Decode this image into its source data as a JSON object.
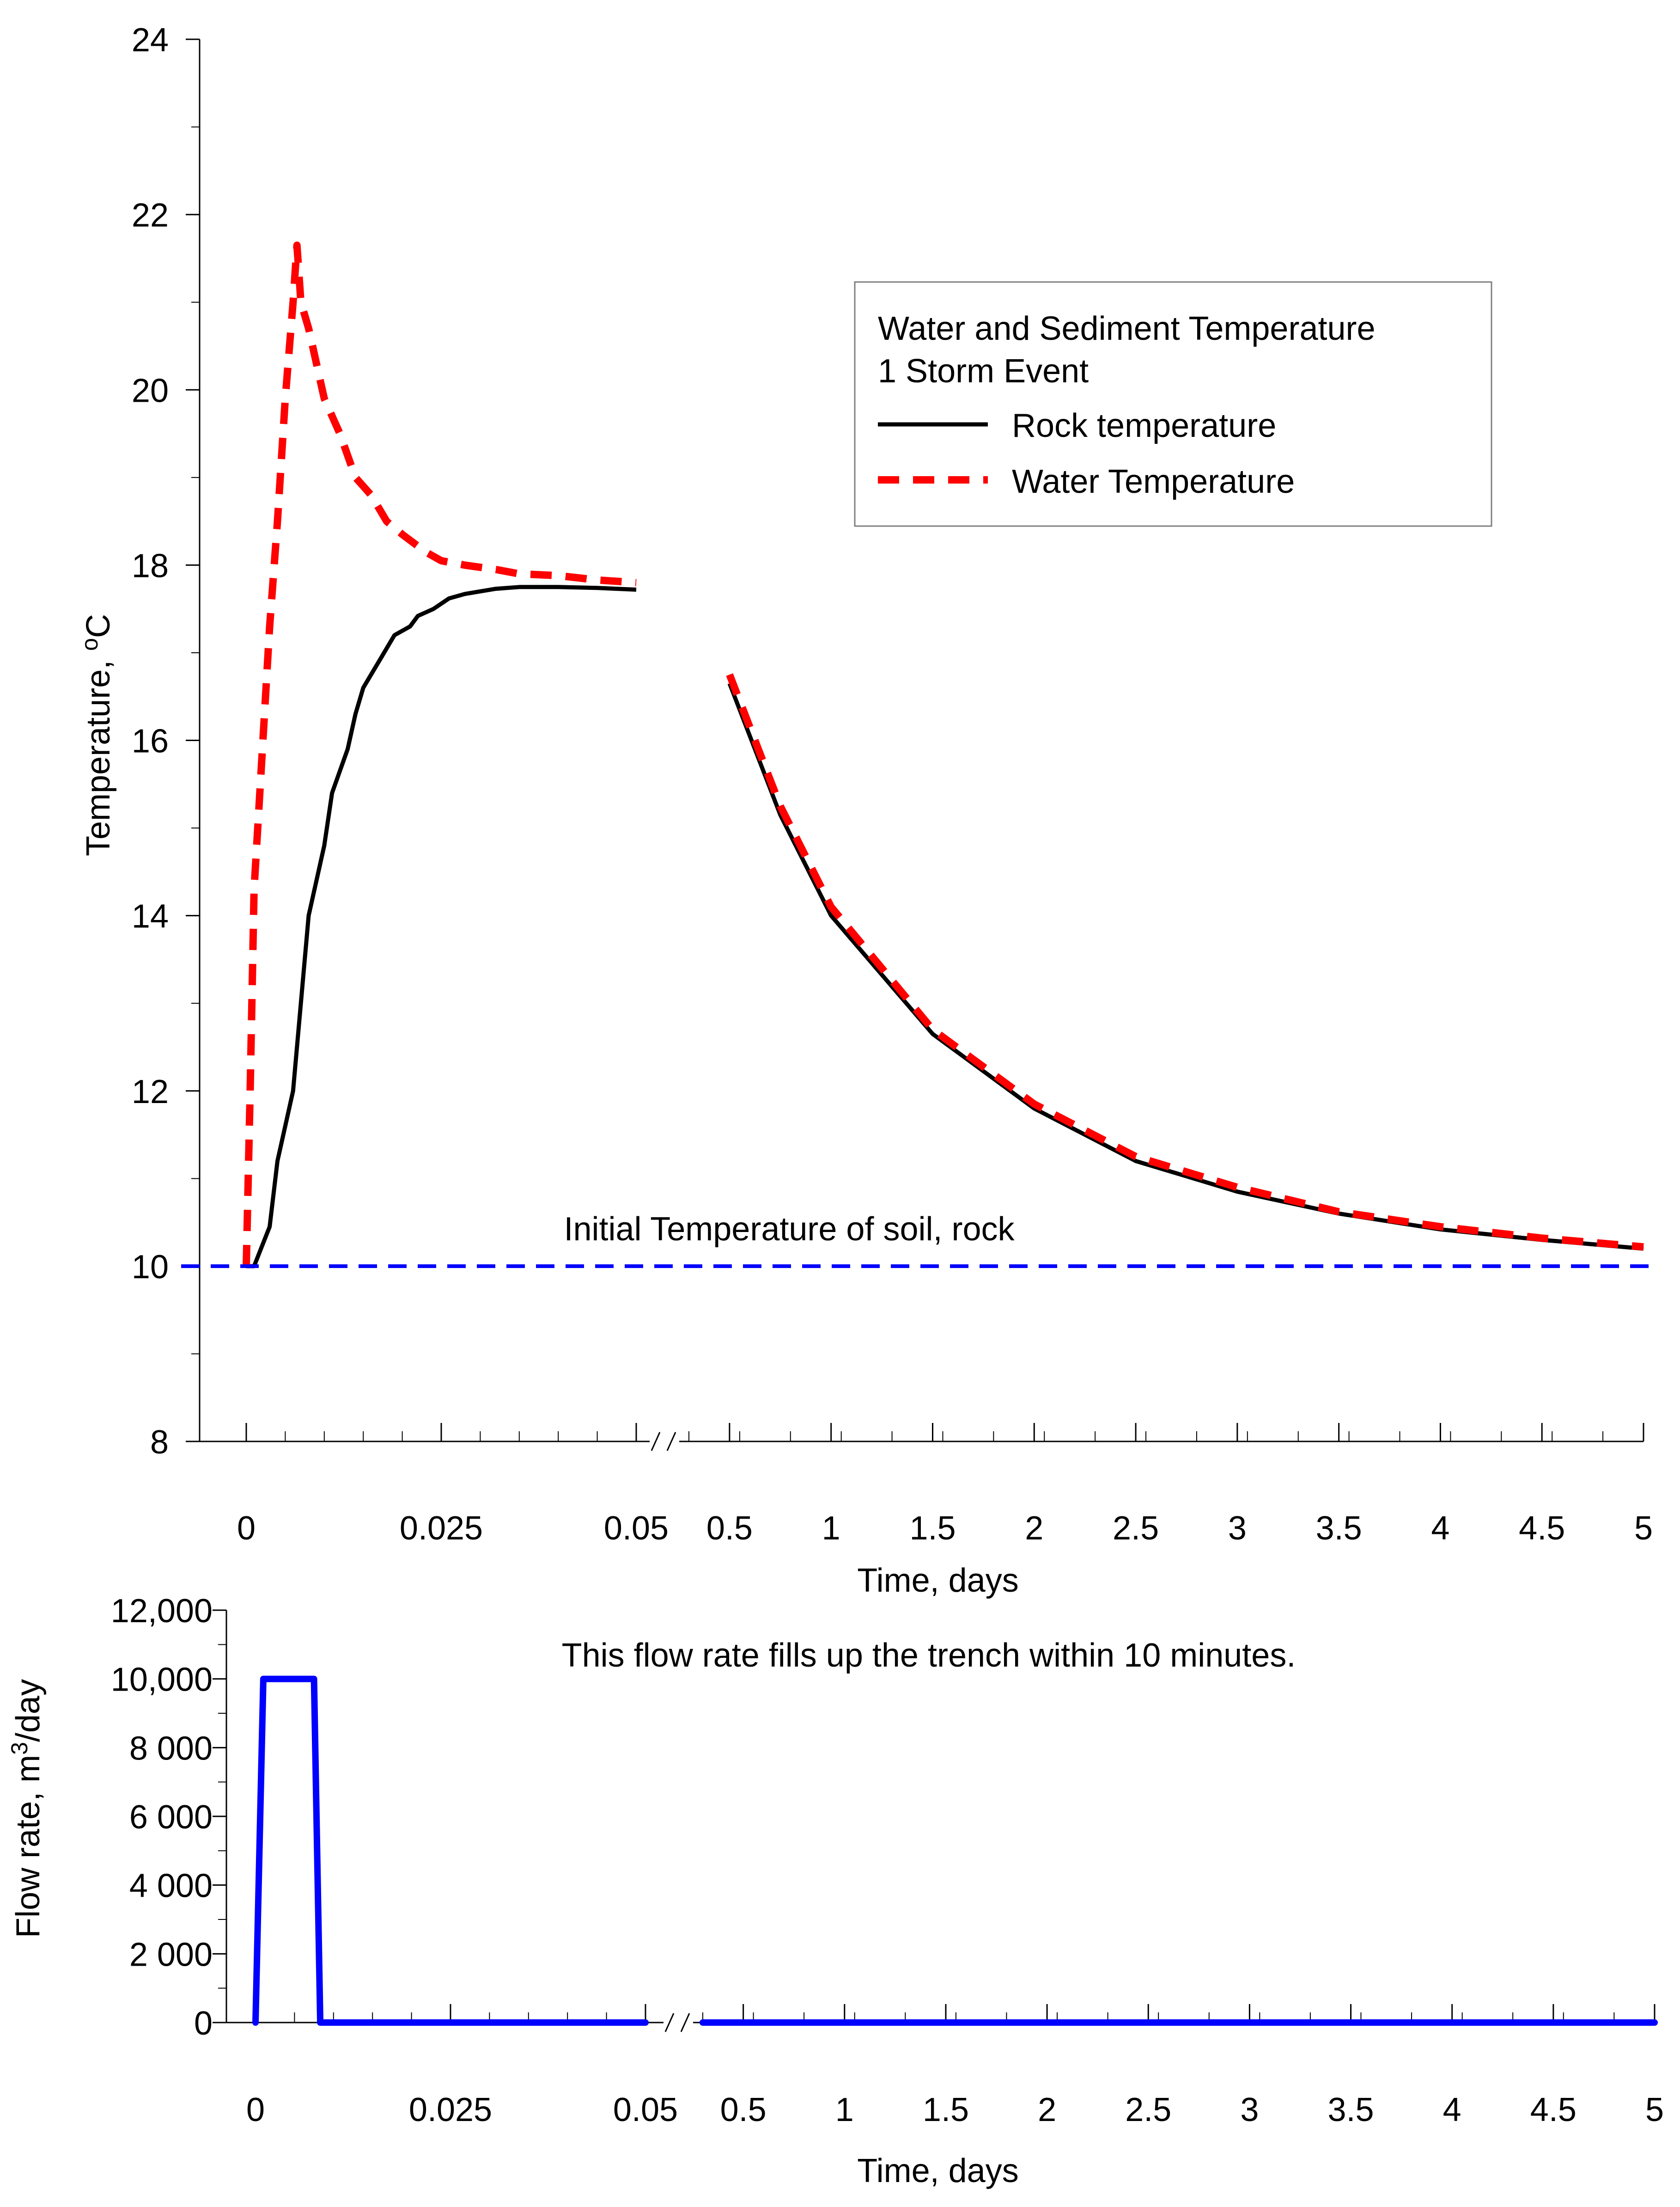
{
  "chart_data": [
    {
      "type": "line",
      "title": "",
      "xlabel": "Time, days",
      "ylabel": "Temperature, ",
      "ylabel_unit_sup": "o",
      "ylabel_unit": "C",
      "ylim": [
        8,
        24
      ],
      "y_ticks": [
        8,
        10,
        12,
        14,
        16,
        18,
        20,
        22,
        24
      ],
      "axis_break": true,
      "x_segments": [
        {
          "range": [
            0,
            0.05
          ],
          "tick_values": [
            0,
            0.025,
            0.05
          ],
          "tick_labels": [
            "0",
            "0.025",
            "0.05"
          ]
        },
        {
          "range": [
            0.3,
            5
          ],
          "tick_values": [
            0.5,
            1,
            1.5,
            2,
            2.5,
            3,
            3.5,
            4,
            4.5,
            5
          ],
          "tick_labels": [
            "0.5",
            "1",
            "1.5",
            "2",
            "2.5",
            "3",
            "3.5",
            "4",
            "4.5",
            "5"
          ]
        }
      ],
      "legend": {
        "position": "top-right",
        "title_line1": "Water and Sediment Temperature",
        "title_line2": "1 Storm Event",
        "entries": [
          "Rock temperature",
          "Water Temperature"
        ]
      },
      "annotation": "Initial Temperature of soil, rock",
      "series": [
        {
          "name": "Rock temperature",
          "color": "#000000",
          "style": "solid",
          "x": [
            0,
            0.001,
            0.003,
            0.004,
            0.005,
            0.006,
            0.008,
            0.01,
            0.011,
            0.013,
            0.014,
            0.015,
            0.016,
            0.017,
            0.019,
            0.021,
            0.022,
            0.024,
            0.026,
            0.028,
            0.03,
            0.032,
            0.035,
            0.04,
            0.045,
            0.05,
            0.5,
            0.75,
            1.0,
            1.5,
            2.0,
            2.5,
            3.0,
            3.5,
            4.0,
            4.5,
            5.0
          ],
          "y": [
            10.0,
            10.0,
            10.45,
            11.2,
            11.6,
            12.0,
            14.0,
            14.8,
            15.4,
            15.9,
            16.3,
            16.6,
            16.75,
            16.9,
            17.2,
            17.3,
            17.42,
            17.5,
            17.62,
            17.67,
            17.7,
            17.73,
            17.75,
            17.75,
            17.74,
            17.72,
            16.65,
            15.15,
            14.0,
            12.65,
            11.8,
            11.2,
            10.85,
            10.6,
            10.42,
            10.3,
            10.2
          ]
        },
        {
          "name": "Water Temperature",
          "color": "#ff0000",
          "style": "dashed",
          "x": [
            0,
            0.0005,
            0.001,
            0.002,
            0.003,
            0.004,
            0.005,
            0.006,
            0.0065,
            0.007,
            0.008,
            0.01,
            0.012,
            0.014,
            0.016,
            0.018,
            0.02,
            0.023,
            0.025,
            0.028,
            0.032,
            0.035,
            0.04,
            0.045,
            0.05,
            0.5,
            0.75,
            1.0,
            1.5,
            2.0,
            2.5,
            3.0,
            3.5,
            4.0,
            4.5,
            5.0
          ],
          "y": [
            10.0,
            12.0,
            14.3,
            15.8,
            17.3,
            18.5,
            19.9,
            21.0,
            21.65,
            21.0,
            20.7,
            19.9,
            19.5,
            19.0,
            18.8,
            18.5,
            18.35,
            18.15,
            18.05,
            18.0,
            17.95,
            17.9,
            17.88,
            17.83,
            17.8,
            16.75,
            15.25,
            14.1,
            12.7,
            11.85,
            11.25,
            10.9,
            10.62,
            10.45,
            10.32,
            10.22
          ]
        },
        {
          "name": "Initial temperature",
          "color": "#0000ff",
          "style": "dashed",
          "x": [
            -0.002,
            5.0
          ],
          "y": [
            10.0,
            10.0
          ]
        }
      ]
    },
    {
      "type": "line",
      "title": "",
      "xlabel": "Time, days",
      "ylabel": "Flow rate, m",
      "ylabel_unit_sup": "3",
      "ylabel_unit": "/day",
      "ylim": [
        0,
        12000
      ],
      "y_ticks": [
        0,
        2000,
        4000,
        6000,
        8000,
        10000,
        12000
      ],
      "y_tick_labels": [
        "0",
        "2 000",
        "4 000",
        "6 000",
        "8 000",
        "10,000",
        "12,000"
      ],
      "axis_break": true,
      "x_segments": [
        {
          "range": [
            0,
            0.05
          ],
          "tick_values": [
            0,
            0.025,
            0.05
          ],
          "tick_labels": [
            "0",
            "0.025",
            "0.05"
          ]
        },
        {
          "range": [
            0.3,
            5
          ],
          "tick_values": [
            0.5,
            1,
            1.5,
            2,
            2.5,
            3,
            3.5,
            4,
            4.5,
            5
          ],
          "tick_labels": [
            "0.5",
            "1",
            "1.5",
            "2",
            "2.5",
            "3",
            "3.5",
            "4",
            "4.5",
            "5"
          ]
        }
      ],
      "annotation": "This flow rate fills up the trench within 10 minutes.",
      "series": [
        {
          "name": "Flow rate",
          "color": "#0000ff",
          "style": "solid",
          "segments": [
            {
              "x": [
                0,
                0.001,
                0.0075,
                0.0083,
                0.05
              ],
              "y": [
                0,
                10000,
                10000,
                0,
                0
              ]
            },
            {
              "x": [
                0.3,
                5
              ],
              "y": [
                0,
                0
              ]
            }
          ]
        }
      ]
    }
  ]
}
